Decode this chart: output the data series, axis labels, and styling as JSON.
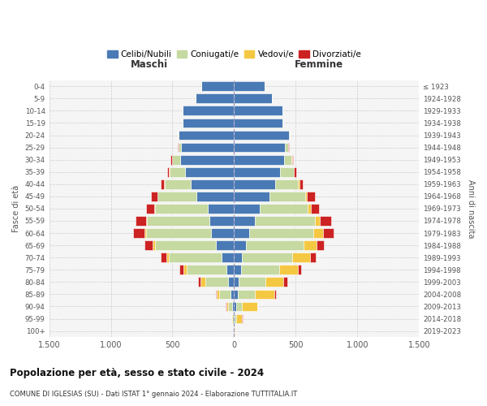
{
  "age_groups": [
    "0-4",
    "5-9",
    "10-14",
    "15-19",
    "20-24",
    "25-29",
    "30-34",
    "35-39",
    "40-44",
    "45-49",
    "50-54",
    "55-59",
    "60-64",
    "65-69",
    "70-74",
    "75-79",
    "80-84",
    "85-89",
    "90-94",
    "95-99",
    "100+"
  ],
  "birth_years": [
    "2019-2023",
    "2014-2018",
    "2009-2013",
    "2004-2008",
    "1999-2003",
    "1994-1998",
    "1989-1993",
    "1984-1988",
    "1979-1983",
    "1974-1978",
    "1969-1973",
    "1964-1968",
    "1959-1963",
    "1954-1958",
    "1949-1953",
    "1944-1948",
    "1939-1943",
    "1934-1938",
    "1929-1933",
    "1924-1928",
    "≤ 1923"
  ],
  "males_celibi": [
    265,
    310,
    415,
    415,
    450,
    430,
    435,
    400,
    350,
    305,
    215,
    200,
    185,
    150,
    100,
    65,
    50,
    30,
    15,
    5,
    2
  ],
  "males_coniugati": [
    0,
    0,
    0,
    5,
    5,
    22,
    70,
    125,
    215,
    315,
    425,
    505,
    530,
    490,
    430,
    320,
    185,
    90,
    35,
    10,
    2
  ],
  "males_vedovi": [
    0,
    0,
    0,
    0,
    0,
    1,
    1,
    2,
    2,
    4,
    7,
    8,
    12,
    18,
    22,
    28,
    35,
    20,
    15,
    5,
    2
  ],
  "males_divorziati": [
    0,
    0,
    0,
    0,
    0,
    4,
    10,
    18,
    28,
    48,
    68,
    88,
    90,
    68,
    45,
    28,
    22,
    10,
    5,
    0,
    0
  ],
  "females_nubili": [
    245,
    305,
    395,
    395,
    445,
    415,
    405,
    375,
    330,
    285,
    210,
    170,
    125,
    95,
    65,
    55,
    38,
    28,
    15,
    5,
    2
  ],
  "females_coniugate": [
    0,
    0,
    0,
    3,
    5,
    20,
    62,
    108,
    190,
    290,
    385,
    485,
    515,
    465,
    405,
    310,
    215,
    140,
    50,
    15,
    2
  ],
  "females_vedove": [
    0,
    0,
    0,
    1,
    2,
    2,
    3,
    4,
    9,
    16,
    28,
    42,
    78,
    108,
    143,
    152,
    148,
    160,
    120,
    45,
    5
  ],
  "females_divorziate": [
    0,
    0,
    0,
    0,
    0,
    5,
    9,
    18,
    28,
    62,
    68,
    88,
    88,
    58,
    48,
    28,
    28,
    14,
    5,
    3,
    0
  ],
  "color_celibi": "#4a7ab5",
  "color_coniugati": "#c5d9a0",
  "color_vedovi": "#f5c842",
  "color_divorziati": "#cc2222",
  "title_main": "Popolazione per età, sesso e stato civile - 2024",
  "title_sub": "COMUNE DI IGLESIAS (SU) - Dati ISTAT 1° gennaio 2024 - Elaborazione TUTTITALIA.IT",
  "label_maschi": "Maschi",
  "label_femmine": "Femmine",
  "ylabel_left": "Fasce di età",
  "ylabel_right": "Anni di nascita",
  "legend_labels": [
    "Celibi/Nubili",
    "Coniugati/e",
    "Vedovi/e",
    "Divorziati/e"
  ],
  "xlim": 1500,
  "xtick_vals": [
    -1500,
    -1000,
    -500,
    0,
    500,
    1000,
    1500
  ],
  "xtick_labels": [
    "1.500",
    "1.000",
    "500",
    "0",
    "500",
    "1.000",
    "1.500"
  ],
  "bg_axes": "#f5f5f5",
  "bg_fig": "#ffffff"
}
